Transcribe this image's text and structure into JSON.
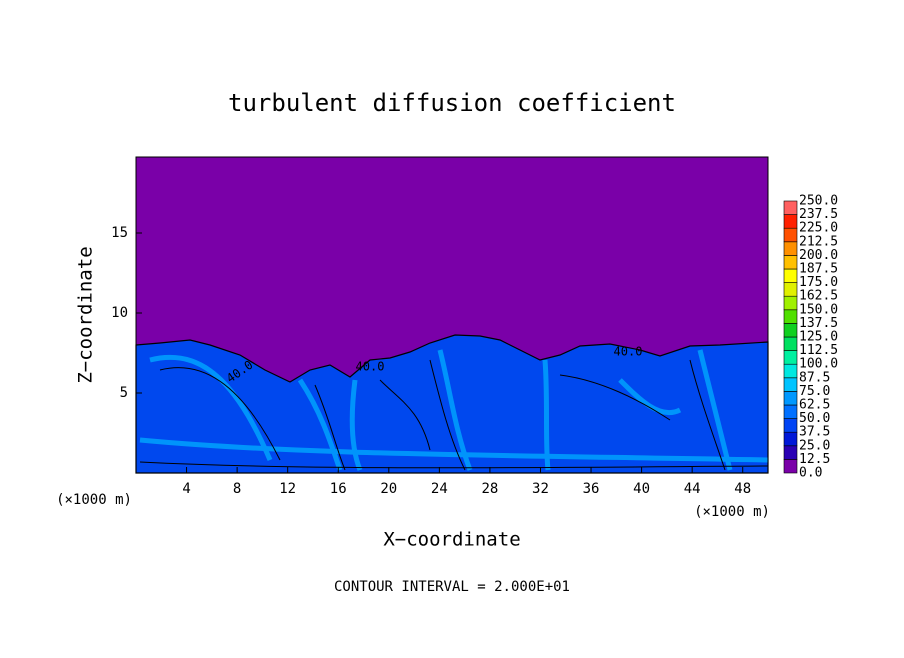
{
  "chart_data": {
    "type": "contour",
    "title": "turbulent diffusion coefficient",
    "x_label": "X−coordinate",
    "y_label": "Z−coordinate",
    "x_unit": "(×1000 m)",
    "x_unit_right": "(×1000 m)",
    "footer": "CONTOUR INTERVAL = 2.000E+01",
    "xlim": [
      0,
      50
    ],
    "xticks": [
      4,
      8,
      12,
      16,
      20,
      24,
      28,
      32,
      36,
      40,
      44,
      48
    ],
    "ylim": [
      0,
      19.75
    ],
    "yticks": [
      5,
      10,
      15
    ],
    "contour_labels": [
      "40.0",
      "40.0",
      "40.0"
    ],
    "levels": [
      {
        "value": 0,
        "label": "0.0"
      },
      {
        "value": 12.5,
        "label": "12.5"
      },
      {
        "value": 25,
        "label": "25.0"
      },
      {
        "value": 37.5,
        "label": "37.5"
      },
      {
        "value": 50,
        "label": "50.0"
      },
      {
        "value": 62.5,
        "label": "62.5"
      },
      {
        "value": 75,
        "label": "75.0"
      },
      {
        "value": 87.5,
        "label": "87.5"
      },
      {
        "value": 100,
        "label": "100.0"
      },
      {
        "value": 112.5,
        "label": "112.5"
      },
      {
        "value": 125,
        "label": "125.0"
      },
      {
        "value": 137.5,
        "label": "137.5"
      },
      {
        "value": 150,
        "label": "150.0"
      },
      {
        "value": 162.5,
        "label": "162.5"
      },
      {
        "value": 175,
        "label": "175.0"
      },
      {
        "value": 187.5,
        "label": "187.5"
      },
      {
        "value": 200,
        "label": "200.0"
      },
      {
        "value": 212.5,
        "label": "212.5"
      },
      {
        "value": 225,
        "label": "225.0"
      },
      {
        "value": 237.5,
        "label": "237.5"
      },
      {
        "value": 250,
        "label": "250.0"
      }
    ],
    "level_colors": [
      "#7a00a8",
      "#2a00b4",
      "#0018d8",
      "#0044f4",
      "#0070ff",
      "#0098ff",
      "#00c4ff",
      "#00e8e0",
      "#00f0a0",
      "#00e060",
      "#10d020",
      "#50e000",
      "#a0f000",
      "#e0f000",
      "#ffff00",
      "#ffc000",
      "#ff9000",
      "#ff5000",
      "#ff2000",
      "#ff6060"
    ]
  }
}
